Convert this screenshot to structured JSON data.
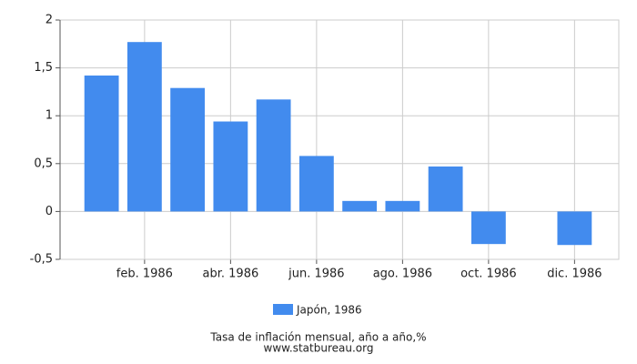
{
  "chart_data": {
    "type": "bar",
    "categories": [
      null,
      "feb. 1986",
      null,
      "abr. 1986",
      null,
      "jun. 1986",
      null,
      "ago. 1986",
      null,
      "oct. 1986",
      null,
      "dic. 1986"
    ],
    "series": [
      {
        "name": "Japón, 1986",
        "color": "#428bee",
        "values": [
          1.42,
          1.77,
          1.29,
          0.94,
          1.17,
          0.58,
          0.11,
          0.11,
          0.47,
          -0.34,
          0,
          -0.35
        ]
      }
    ],
    "ylim": [
      -0.5,
      2
    ],
    "yticks": [
      {
        "value": -0.5,
        "label": "-0,5"
      },
      0,
      {
        "value": 0.5,
        "label": "0,5"
      },
      1,
      {
        "value": 1.5,
        "label": "1,5"
      },
      2
    ],
    "grid": true,
    "legend": "bottom",
    "footer": [
      "Tasa de inflación mensual, año a año,%",
      "www.statbureau.org"
    ]
  }
}
